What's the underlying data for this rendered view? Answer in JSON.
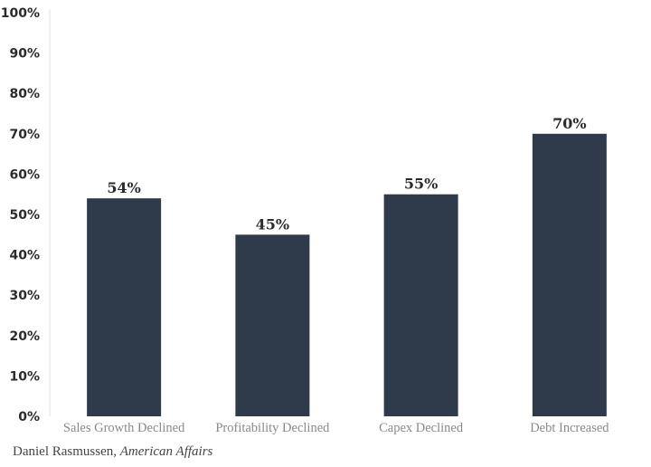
{
  "chart_data": {
    "type": "bar",
    "categories": [
      "Sales Growth Declined",
      "Profitability Declined",
      "Capex Declined",
      "Debt Increased"
    ],
    "values": [
      54,
      45,
      55,
      70
    ],
    "value_labels": [
      "54%",
      "45%",
      "55%",
      "70%"
    ],
    "y_ticks": [
      0,
      10,
      20,
      30,
      40,
      50,
      60,
      70,
      80,
      90,
      100
    ],
    "y_tick_labels": [
      "0%",
      "10%",
      "20%",
      "30%",
      "40%",
      "50%",
      "60%",
      "70%",
      "80%",
      "90%",
      "100%"
    ],
    "ylim": [
      0,
      100
    ],
    "title": "",
    "xlabel": "",
    "ylabel": "",
    "grid": false,
    "bar_color": "#2f3a4a"
  },
  "credit": {
    "author": "Daniel Rasmussen,",
    "publication": "American Affairs"
  }
}
